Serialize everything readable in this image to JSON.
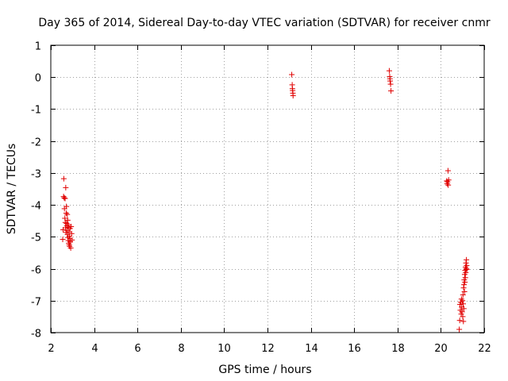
{
  "chart_data": {
    "type": "scatter",
    "title": "Day 365 of 2014, Sidereal Day-to-day VTEC variation (SDTVAR) for receiver cnmr",
    "xlabel": "GPS time / hours",
    "ylabel": "SDTVAR / TECUs",
    "xlim": [
      2,
      22
    ],
    "ylim": [
      -8,
      1
    ],
    "x_ticks": [
      2,
      4,
      6,
      8,
      10,
      12,
      14,
      16,
      18,
      20,
      22
    ],
    "y_ticks": [
      1,
      0,
      -1,
      -2,
      -3,
      -4,
      -5,
      -6,
      -7,
      -8
    ],
    "x_tick_labels": [
      "2",
      "4",
      "6",
      "8",
      "10",
      "12",
      "14",
      "16",
      "18",
      "20",
      "22"
    ],
    "y_tick_labels": [
      "1",
      "0",
      "-1",
      "-2",
      "-3",
      "-4",
      "-5",
      "-6",
      "-7",
      "-8"
    ],
    "grid": true,
    "marker": "+",
    "color": "#e00000",
    "series": [
      {
        "name": "SDTVAR",
        "points": [
          [
            2.55,
            -5.08
          ],
          [
            2.57,
            -4.78
          ],
          [
            2.59,
            -3.74
          ],
          [
            2.6,
            -3.18
          ],
          [
            2.62,
            -3.78
          ],
          [
            2.63,
            -4.12
          ],
          [
            2.65,
            -4.42
          ],
          [
            2.66,
            -3.8
          ],
          [
            2.67,
            -4.55
          ],
          [
            2.68,
            -4.72
          ],
          [
            2.69,
            -3.46
          ],
          [
            2.7,
            -4.86
          ],
          [
            2.71,
            -4.26
          ],
          [
            2.72,
            -4.05
          ],
          [
            2.73,
            -4.58
          ],
          [
            2.74,
            -4.66
          ],
          [
            2.75,
            -4.8
          ],
          [
            2.76,
            -4.3
          ],
          [
            2.77,
            -4.92
          ],
          [
            2.78,
            -4.48
          ],
          [
            2.79,
            -5.02
          ],
          [
            2.8,
            -4.62
          ],
          [
            2.81,
            -5.12
          ],
          [
            2.82,
            -4.7
          ],
          [
            2.83,
            -5.2
          ],
          [
            2.84,
            -4.85
          ],
          [
            2.85,
            -5.25
          ],
          [
            2.86,
            -4.98
          ],
          [
            2.87,
            -5.3
          ],
          [
            2.88,
            -5.05
          ],
          [
            2.89,
            -4.74
          ],
          [
            2.9,
            -5.15
          ],
          [
            2.92,
            -5.35
          ],
          [
            2.94,
            -4.68
          ],
          [
            2.96,
            -4.9
          ],
          [
            2.98,
            -5.1
          ],
          [
            13.12,
            0.08
          ],
          [
            13.14,
            -0.24
          ],
          [
            13.15,
            -0.36
          ],
          [
            13.16,
            -0.42
          ],
          [
            13.17,
            -0.5
          ],
          [
            13.18,
            -0.58
          ],
          [
            17.62,
            0.2
          ],
          [
            17.64,
            0.02
          ],
          [
            17.65,
            -0.05
          ],
          [
            17.66,
            -0.12
          ],
          [
            17.68,
            -0.22
          ],
          [
            17.7,
            -0.43
          ],
          [
            20.27,
            -3.25
          ],
          [
            20.29,
            -3.34
          ],
          [
            20.31,
            -3.28
          ],
          [
            20.33,
            -2.93
          ],
          [
            20.34,
            -3.38
          ],
          [
            20.36,
            -3.22
          ],
          [
            20.85,
            -7.9
          ],
          [
            20.87,
            -7.62
          ],
          [
            20.88,
            -7.12
          ],
          [
            20.9,
            -7.3
          ],
          [
            20.92,
            -7.05
          ],
          [
            20.94,
            -7.42
          ],
          [
            20.95,
            -6.95
          ],
          [
            20.96,
            -7.2
          ],
          [
            20.98,
            -7.35
          ],
          [
            21.0,
            -7.0
          ],
          [
            21.01,
            -7.5
          ],
          [
            21.02,
            -6.82
          ],
          [
            21.03,
            -7.1
          ],
          [
            21.04,
            -7.65
          ],
          [
            21.05,
            -6.6
          ],
          [
            21.06,
            -7.25
          ],
          [
            21.07,
            -6.5
          ],
          [
            21.08,
            -6.35
          ],
          [
            21.09,
            -6.72
          ],
          [
            21.1,
            -6.18
          ],
          [
            21.11,
            -6.42
          ],
          [
            21.12,
            -6.05
          ],
          [
            21.13,
            -6.28
          ],
          [
            21.14,
            -5.95
          ],
          [
            21.15,
            -6.12
          ],
          [
            21.16,
            -5.82
          ],
          [
            21.17,
            -6.0
          ],
          [
            21.18,
            -5.72
          ],
          [
            21.19,
            -5.9
          ],
          [
            21.2,
            -6.02
          ]
        ]
      }
    ]
  }
}
